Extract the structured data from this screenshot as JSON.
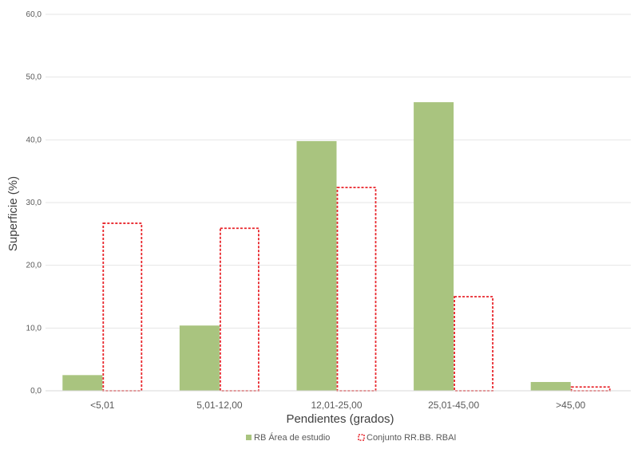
{
  "chart_data": {
    "type": "bar",
    "categories": [
      "<5,01",
      "5,01-12,00",
      "12,01-25,00",
      "25,01-45,00",
      ">45,00"
    ],
    "series": [
      {
        "name": "RB Área de estudio",
        "values": [
          2.5,
          10.4,
          39.8,
          46.0,
          1.4
        ],
        "color": "#a9c47f",
        "style": "filled"
      },
      {
        "name": "Conjunto RR.BB. RBAI",
        "values": [
          26.7,
          25.9,
          32.4,
          15.0,
          0.6
        ],
        "color": "#e8252b",
        "style": "dashed-outline"
      }
    ],
    "title": "",
    "xlabel": "Pendientes  (grados)",
    "ylabel": "Superficie  (%)",
    "ylim": [
      0,
      60
    ],
    "yticks": [
      "0,0",
      "10,0",
      "20,0",
      "30,0",
      "40,0",
      "50,0",
      "60,0"
    ],
    "grid": true,
    "legend_position": "bottom"
  }
}
